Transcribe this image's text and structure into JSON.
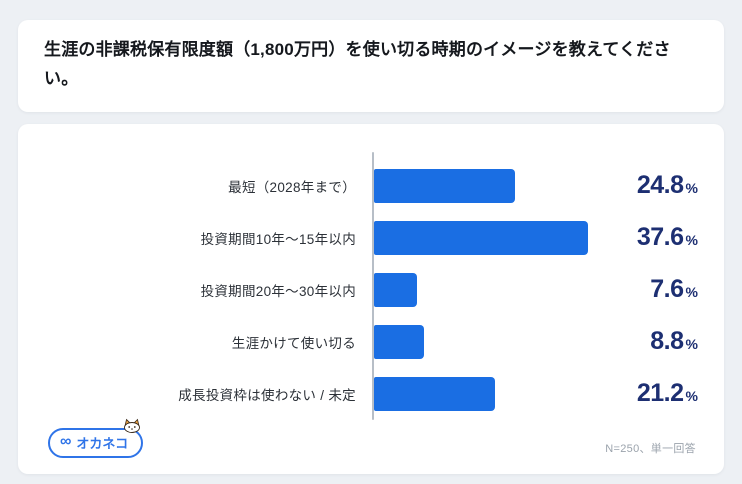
{
  "header": {
    "title": "生涯の非課税保有限度額（1,800万円）を使い切る時期のイメージを教えてください。"
  },
  "chart_data": {
    "type": "bar",
    "orientation": "horizontal",
    "title": "生涯の非課税保有限度額（1,800万円）を使い切る時期のイメージ",
    "categories": [
      "最短（2028年まで）",
      "投資期間10年〜15年以内",
      "投資期間20年〜30年以内",
      "生涯かけて使い切る",
      "成長投資枠は使わない / 未定"
    ],
    "values": [
      24.8,
      37.6,
      7.6,
      8.8,
      21.2
    ],
    "unit": "%",
    "xlim": [
      0,
      40
    ],
    "grid": false,
    "bar_color": "#1a6ee3",
    "value_color": "#1d2f72"
  },
  "footer": {
    "logo_text": "オカネコ",
    "logo_mark": "∞",
    "note": "N=250、単一回答"
  }
}
